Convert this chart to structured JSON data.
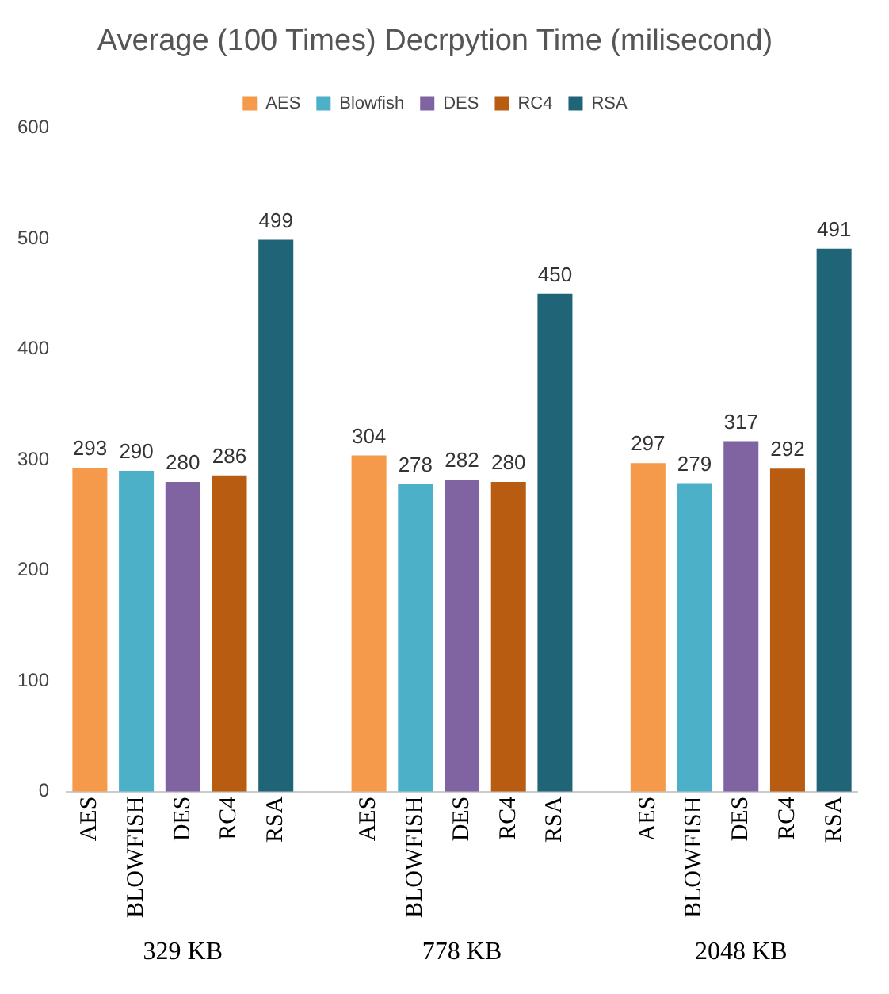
{
  "chart_data": {
    "type": "bar",
    "title": "Average (100 Times) Decrpytion Time (milisecond)",
    "categories": [
      "AES",
      "BLOWFISH",
      "DES",
      "RC4",
      "RSA",
      null,
      "AES",
      "BLOWFISH",
      "DES",
      "RC4",
      "RSA",
      null,
      "AES",
      "BLOWFISH",
      "DES",
      "RC4",
      "RSA"
    ],
    "series": [
      {
        "name": "AES",
        "color": "#f59a4a",
        "values": [
          293,
          null,
          null,
          null,
          null,
          null,
          304,
          null,
          null,
          null,
          null,
          null,
          297,
          null,
          null,
          null,
          null
        ]
      },
      {
        "name": "Blowfish",
        "color": "#4bb0c8",
        "values": [
          null,
          290,
          null,
          null,
          null,
          null,
          null,
          278,
          null,
          null,
          null,
          null,
          null,
          279,
          null,
          null,
          null
        ]
      },
      {
        "name": "DES",
        "color": "#8064a2",
        "values": [
          null,
          null,
          280,
          null,
          null,
          null,
          null,
          null,
          282,
          null,
          null,
          null,
          null,
          null,
          317,
          null,
          null
        ]
      },
      {
        "name": "RC4",
        "color": "#b85c12",
        "values": [
          null,
          null,
          null,
          286,
          null,
          null,
          null,
          null,
          null,
          280,
          null,
          null,
          null,
          null,
          null,
          292,
          null
        ]
      },
      {
        "name": "RSA",
        "color": "#1f6477",
        "values": [
          null,
          null,
          null,
          null,
          499,
          null,
          null,
          null,
          null,
          null,
          450,
          null,
          null,
          null,
          null,
          null,
          491
        ]
      }
    ],
    "ylim": [
      0,
      600
    ],
    "yticks": [
      0,
      100,
      200,
      300,
      400,
      500,
      600
    ],
    "grid": false,
    "legend": "top",
    "data_labels": true,
    "annotations": [
      "329 KB",
      "778 KB",
      "2048 KB"
    ]
  }
}
